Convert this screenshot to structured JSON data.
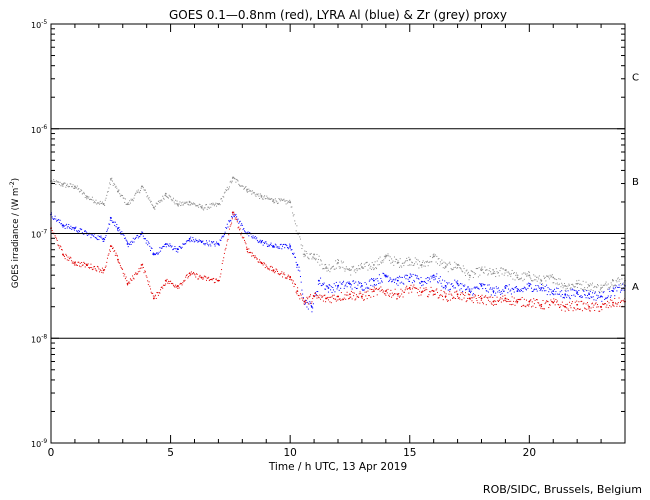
{
  "chart_data": {
    "type": "scatter",
    "title": "GOES 0.1—0.8nm (red), LYRA Al (blue) & Zr (grey) proxy",
    "xlabel": "Time / h UTC, 13 Apr 2019",
    "ylabel_main": "GOES irradiance / (W m",
    "ylabel_exp": "-2",
    "ylabel_close": ")",
    "xlim": [
      0,
      24
    ],
    "ylim_exp": [
      -9,
      -5
    ],
    "yscale": "log",
    "xticks": [
      {
        "value": 0,
        "label": "0"
      },
      {
        "value": 5,
        "label": "5"
      },
      {
        "value": 10,
        "label": "10"
      },
      {
        "value": 15,
        "label": "15"
      },
      {
        "value": 20,
        "label": "20"
      }
    ],
    "yticks": [
      {
        "exp": -5,
        "label": "10",
        "sup": "-5"
      },
      {
        "exp": -6,
        "label": "10",
        "sup": "-6"
      },
      {
        "exp": -7,
        "label": "10",
        "sup": "-7"
      },
      {
        "exp": -8,
        "label": "10",
        "sup": "-8"
      },
      {
        "exp": -9,
        "label": "10",
        "sup": "-9"
      }
    ],
    "flare_lines": [
      -6,
      -7,
      -8
    ],
    "flare_classes": [
      {
        "label": "C",
        "exp": -5.5
      },
      {
        "label": "B",
        "exp": -6.5
      },
      {
        "label": "A",
        "exp": -7.5
      }
    ],
    "series": [
      {
        "name": "Zr proxy (grey)",
        "color": "#8c8c8c",
        "points": [
          [
            0,
            -6.5
          ],
          [
            0.5,
            -6.53
          ],
          [
            1,
            -6.55
          ],
          [
            1.5,
            -6.65
          ],
          [
            2.2,
            -6.72
          ],
          [
            2.5,
            -6.48
          ],
          [
            2.8,
            -6.6
          ],
          [
            3.2,
            -6.72
          ],
          [
            3.8,
            -6.55
          ],
          [
            4.3,
            -6.75
          ],
          [
            4.8,
            -6.62
          ],
          [
            5.3,
            -6.72
          ],
          [
            5.8,
            -6.7
          ],
          [
            6.3,
            -6.75
          ],
          [
            7.0,
            -6.72
          ],
          [
            7.6,
            -6.47
          ],
          [
            8.2,
            -6.58
          ],
          [
            8.8,
            -6.65
          ],
          [
            9.3,
            -6.68
          ],
          [
            10.0,
            -6.7
          ],
          [
            10.3,
            -7.0
          ],
          [
            10.6,
            -7.2
          ],
          [
            11.0,
            -7.2
          ],
          [
            11.5,
            -7.33
          ],
          [
            12.0,
            -7.28
          ],
          [
            12.5,
            -7.35
          ],
          [
            13.0,
            -7.32
          ],
          [
            13.5,
            -7.3
          ],
          [
            14.0,
            -7.22
          ],
          [
            14.5,
            -7.28
          ],
          [
            15.0,
            -7.25
          ],
          [
            15.5,
            -7.3
          ],
          [
            16.0,
            -7.22
          ],
          [
            16.5,
            -7.32
          ],
          [
            17.0,
            -7.3
          ],
          [
            17.5,
            -7.4
          ],
          [
            18.0,
            -7.35
          ],
          [
            18.5,
            -7.38
          ],
          [
            19.0,
            -7.35
          ],
          [
            19.5,
            -7.42
          ],
          [
            20.0,
            -7.4
          ],
          [
            20.5,
            -7.45
          ],
          [
            21.0,
            -7.42
          ],
          [
            21.5,
            -7.5
          ],
          [
            22.0,
            -7.48
          ],
          [
            22.5,
            -7.5
          ],
          [
            23.0,
            -7.52
          ],
          [
            23.5,
            -7.45
          ],
          [
            24.0,
            -7.45
          ]
        ]
      },
      {
        "name": "LYRA Al (blue)",
        "color": "#0000ff",
        "points": [
          [
            0,
            -6.82
          ],
          [
            0.5,
            -6.92
          ],
          [
            1,
            -6.95
          ],
          [
            1.5,
            -7.0
          ],
          [
            2.2,
            -7.05
          ],
          [
            2.5,
            -6.85
          ],
          [
            2.8,
            -6.95
          ],
          [
            3.2,
            -7.1
          ],
          [
            3.8,
            -7.0
          ],
          [
            4.3,
            -7.2
          ],
          [
            4.8,
            -7.1
          ],
          [
            5.3,
            -7.15
          ],
          [
            5.8,
            -7.05
          ],
          [
            6.3,
            -7.08
          ],
          [
            7.0,
            -7.1
          ],
          [
            7.6,
            -6.8
          ],
          [
            8.2,
            -7.0
          ],
          [
            8.8,
            -7.08
          ],
          [
            9.3,
            -7.12
          ],
          [
            10.0,
            -7.12
          ],
          [
            10.3,
            -7.3
          ],
          [
            10.6,
            -7.65
          ],
          [
            10.9,
            -7.7
          ],
          [
            11.2,
            -7.45
          ],
          [
            11.6,
            -7.52
          ],
          [
            12.0,
            -7.5
          ],
          [
            12.5,
            -7.48
          ],
          [
            13.0,
            -7.5
          ],
          [
            13.5,
            -7.45
          ],
          [
            14.0,
            -7.4
          ],
          [
            14.5,
            -7.45
          ],
          [
            15.0,
            -7.42
          ],
          [
            15.5,
            -7.46
          ],
          [
            16.0,
            -7.4
          ],
          [
            16.5,
            -7.5
          ],
          [
            17.0,
            -7.48
          ],
          [
            17.5,
            -7.55
          ],
          [
            18.0,
            -7.5
          ],
          [
            18.5,
            -7.55
          ],
          [
            19.0,
            -7.52
          ],
          [
            19.5,
            -7.55
          ],
          [
            20.0,
            -7.5
          ],
          [
            20.5,
            -7.52
          ],
          [
            21.0,
            -7.55
          ],
          [
            21.5,
            -7.58
          ],
          [
            22.0,
            -7.56
          ],
          [
            22.5,
            -7.58
          ],
          [
            23.0,
            -7.6
          ],
          [
            23.5,
            -7.55
          ],
          [
            24.0,
            -7.5
          ]
        ]
      },
      {
        "name": "GOES 0.1-0.8nm (red)",
        "color": "#e00000",
        "points": [
          [
            0,
            -6.95
          ],
          [
            0.5,
            -7.2
          ],
          [
            1,
            -7.28
          ],
          [
            1.5,
            -7.3
          ],
          [
            2.2,
            -7.35
          ],
          [
            2.5,
            -7.12
          ],
          [
            2.8,
            -7.25
          ],
          [
            3.2,
            -7.48
          ],
          [
            3.8,
            -7.3
          ],
          [
            4.3,
            -7.62
          ],
          [
            4.8,
            -7.45
          ],
          [
            5.3,
            -7.5
          ],
          [
            5.8,
            -7.38
          ],
          [
            6.3,
            -7.42
          ],
          [
            7.0,
            -7.45
          ],
          [
            7.6,
            -6.8
          ],
          [
            8.2,
            -7.15
          ],
          [
            8.8,
            -7.28
          ],
          [
            9.3,
            -7.35
          ],
          [
            10.0,
            -7.42
          ],
          [
            10.3,
            -7.55
          ],
          [
            10.6,
            -7.65
          ],
          [
            11.0,
            -7.6
          ],
          [
            11.5,
            -7.62
          ],
          [
            12.0,
            -7.6
          ],
          [
            12.5,
            -7.58
          ],
          [
            13.0,
            -7.6
          ],
          [
            13.5,
            -7.55
          ],
          [
            14.0,
            -7.55
          ],
          [
            14.5,
            -7.58
          ],
          [
            15.0,
            -7.52
          ],
          [
            15.5,
            -7.56
          ],
          [
            16.0,
            -7.55
          ],
          [
            16.5,
            -7.6
          ],
          [
            17.0,
            -7.58
          ],
          [
            17.5,
            -7.62
          ],
          [
            18.0,
            -7.62
          ],
          [
            18.5,
            -7.65
          ],
          [
            19.0,
            -7.62
          ],
          [
            19.5,
            -7.65
          ],
          [
            20.0,
            -7.65
          ],
          [
            20.5,
            -7.68
          ],
          [
            21.0,
            -7.66
          ],
          [
            21.5,
            -7.7
          ],
          [
            22.0,
            -7.68
          ],
          [
            22.5,
            -7.7
          ],
          [
            23.0,
            -7.7
          ],
          [
            23.5,
            -7.66
          ],
          [
            24.0,
            -7.65
          ]
        ]
      }
    ]
  },
  "credit": "ROB/SIDC, Brussels, Belgium"
}
